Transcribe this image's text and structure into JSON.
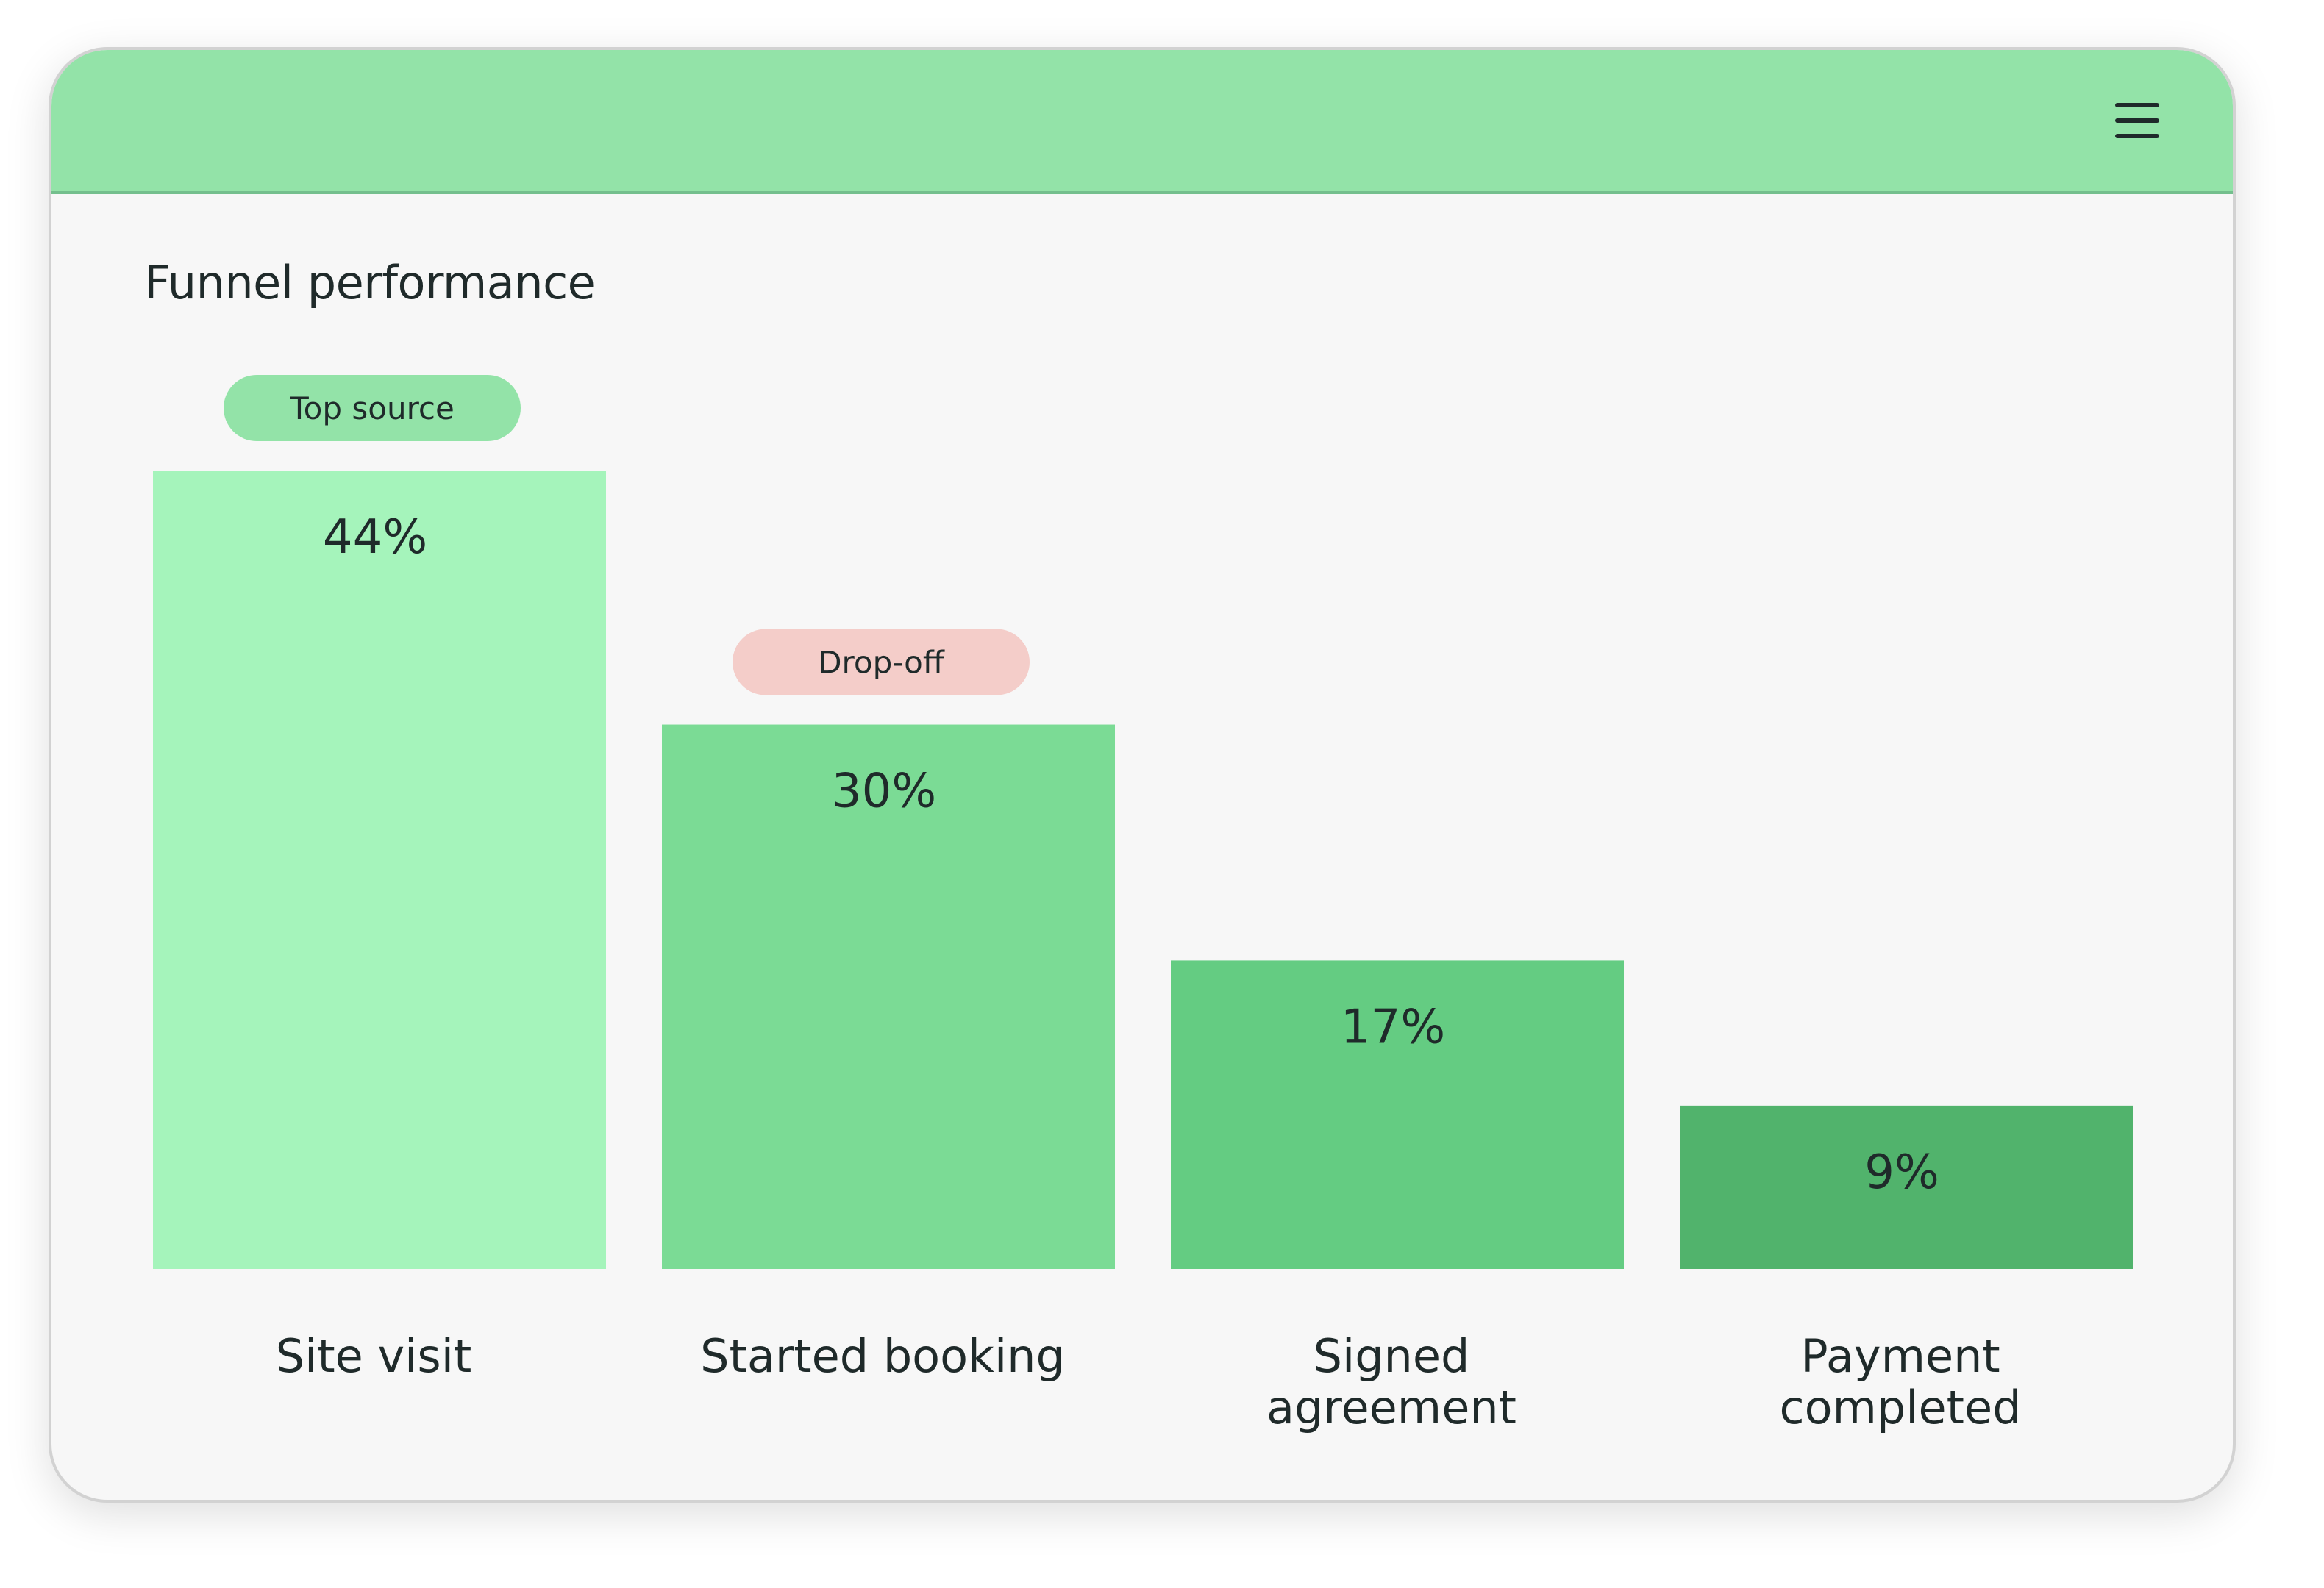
{
  "window": {
    "menu_icon": "hamburger-menu-icon"
  },
  "chart_title": "Funnel performance",
  "colors": {
    "titlebar": "#93e3a8",
    "bar_colors": [
      "#a5f4bb",
      "#7bdb95",
      "#64cc82",
      "#51b36c"
    ],
    "badge_positive": "#93e3a8",
    "badge_negative": "#f4cdc9"
  },
  "chart_data": {
    "type": "bar",
    "title": "Funnel performance",
    "categories": [
      "Site visit",
      "Started booking",
      "Signed agreement",
      "Payment completed"
    ],
    "category_lines": [
      [
        "Site visit"
      ],
      [
        "Started booking"
      ],
      [
        "Signed",
        "agreement"
      ],
      [
        "Payment",
        "completed"
      ]
    ],
    "values": [
      44,
      30,
      17,
      9
    ],
    "value_labels": [
      "44%",
      "30%",
      "17%",
      "9%"
    ],
    "unit": "%",
    "ylim": [
      0,
      44
    ],
    "grid": false,
    "annotations": [
      {
        "category": "Site visit",
        "text": "Top source",
        "tone": "positive"
      },
      {
        "category": "Started booking",
        "text": "Drop-off",
        "tone": "negative"
      }
    ]
  }
}
